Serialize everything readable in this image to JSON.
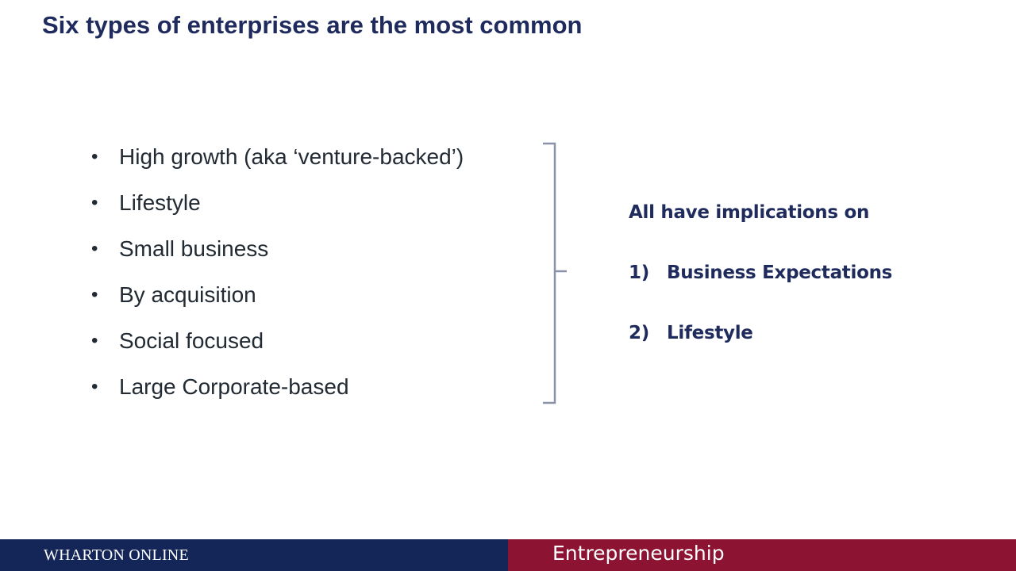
{
  "slide": {
    "title": "Six types of enterprises are the most common",
    "bullet_symbol": "•",
    "bullets": [
      "High growth (aka ‘venture-backed’)",
      "Lifestyle",
      "Small business",
      "By acquisition",
      "Social focused",
      "Large Corporate-based"
    ],
    "implications": {
      "heading": "All have implications on",
      "items": [
        {
          "number": "1)",
          "label": "Business Expectations"
        },
        {
          "number": "2)",
          "label": "Lifestyle"
        }
      ]
    }
  },
  "footer": {
    "brand": "WHARTON ONLINE",
    "course": "Entrepreneurship"
  },
  "colors": {
    "title": "#1f2b5c",
    "body_text": "#222a33",
    "bracket": "#8a93a8",
    "footer_navy": "#132657",
    "footer_maroon": "#8c1432"
  }
}
